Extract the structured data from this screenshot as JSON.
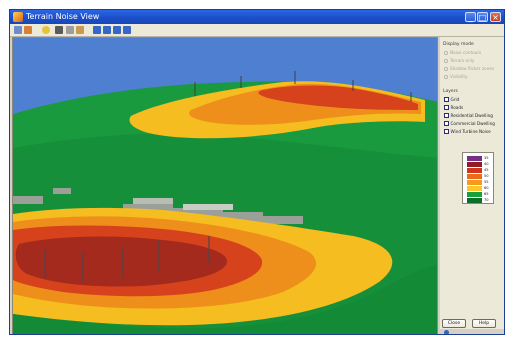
{
  "window": {
    "title": "Terrain Noise View"
  },
  "panel": {
    "display_section_title": "Display mode",
    "display_options": [
      "Noise contours",
      "Terrain only",
      "Shadow flicker zones",
      "Visibility"
    ],
    "layers_section_title": "Layers",
    "layers": [
      "Grid",
      "Roads",
      "Residential Dwelling",
      "Commercial Dwelling",
      "Wind Turbine Noise"
    ],
    "legend": [
      {
        "label": "35",
        "color": "#7a2f86"
      },
      {
        "label": "40",
        "color": "#8f1b23"
      },
      {
        "label": "45",
        "color": "#d2331d"
      },
      {
        "label": "50",
        "color": "#ec6a1c"
      },
      {
        "label": "55",
        "color": "#f59a1a"
      },
      {
        "label": "60",
        "color": "#fbc72a"
      },
      {
        "label": "65",
        "color": "#18a13a"
      },
      {
        "label": "70",
        "color": "#0b6f2a"
      }
    ],
    "buttons": {
      "ok": "Close",
      "help": "Help"
    }
  },
  "colors": {
    "sky": "#4e7fd1",
    "terrain_green": "#19913b",
    "terrain_dark": "#0f6f2c",
    "contour_yellow": "#f5bd1f",
    "contour_orange": "#ef8f1b",
    "contour_red": "#d6421c",
    "contour_dark_red": "#a52a1e"
  }
}
